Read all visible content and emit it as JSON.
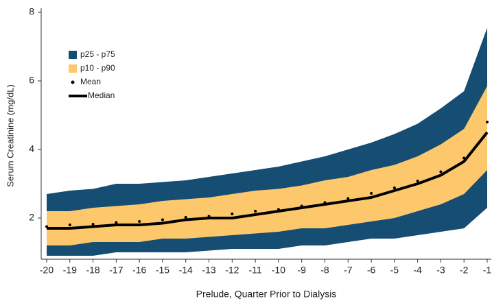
{
  "chart_data": {
    "type": "band",
    "x_label": "Prelude, Quarter Prior to Dialysis",
    "y_label": "Serum Creatinine (mg/dL)",
    "x": [
      -20,
      -19,
      -18,
      -17,
      -16,
      -15,
      -14,
      -13,
      -12,
      -11,
      -10,
      -9,
      -8,
      -7,
      -6,
      -5,
      -4,
      -3,
      -2,
      -1
    ],
    "xlim": [
      -20,
      -1
    ],
    "xticks": [
      -20,
      -19,
      -18,
      -17,
      -16,
      -15,
      -14,
      -13,
      -12,
      -11,
      -10,
      -9,
      -8,
      -7,
      -6,
      -5,
      -4,
      -3,
      -2,
      -1
    ],
    "ylim": [
      0.8,
      8
    ],
    "yticks": [
      2,
      4,
      6,
      8
    ],
    "legend": "upper left",
    "series": [
      {
        "name": "p25 - p75",
        "kind": "band",
        "color": "#154d73",
        "high": [
          2.7,
          2.8,
          2.85,
          3.0,
          3.0,
          3.05,
          3.1,
          3.2,
          3.3,
          3.4,
          3.5,
          3.65,
          3.8,
          4.0,
          4.2,
          4.45,
          4.75,
          5.2,
          5.7,
          7.55
        ],
        "low": [
          0.9,
          0.9,
          0.9,
          1.0,
          1.0,
          1.0,
          1.0,
          1.05,
          1.1,
          1.1,
          1.1,
          1.2,
          1.2,
          1.3,
          1.4,
          1.4,
          1.5,
          1.6,
          1.7,
          2.3
        ]
      },
      {
        "name": "p10 - p90",
        "kind": "band",
        "color": "#fdc76b",
        "high": [
          2.2,
          2.2,
          2.3,
          2.35,
          2.4,
          2.5,
          2.55,
          2.6,
          2.7,
          2.8,
          2.85,
          2.95,
          3.1,
          3.2,
          3.4,
          3.55,
          3.8,
          4.15,
          4.6,
          5.85
        ],
        "low": [
          1.2,
          1.2,
          1.3,
          1.3,
          1.3,
          1.4,
          1.4,
          1.45,
          1.5,
          1.55,
          1.6,
          1.7,
          1.7,
          1.8,
          1.9,
          2.0,
          2.2,
          2.4,
          2.7,
          3.4
        ]
      },
      {
        "name": "Mean",
        "kind": "dots",
        "color": "#000000",
        "values": [
          1.75,
          1.8,
          1.82,
          1.87,
          1.9,
          1.95,
          2.02,
          2.05,
          2.12,
          2.2,
          2.25,
          2.35,
          2.45,
          2.57,
          2.72,
          2.88,
          3.08,
          3.35,
          3.75,
          4.8
        ]
      },
      {
        "name": "Median",
        "kind": "line",
        "color": "#000000",
        "values": [
          1.7,
          1.7,
          1.75,
          1.8,
          1.8,
          1.85,
          1.95,
          2.0,
          2.0,
          2.1,
          2.2,
          2.3,
          2.4,
          2.5,
          2.6,
          2.8,
          3.0,
          3.25,
          3.65,
          4.5
        ]
      }
    ]
  }
}
